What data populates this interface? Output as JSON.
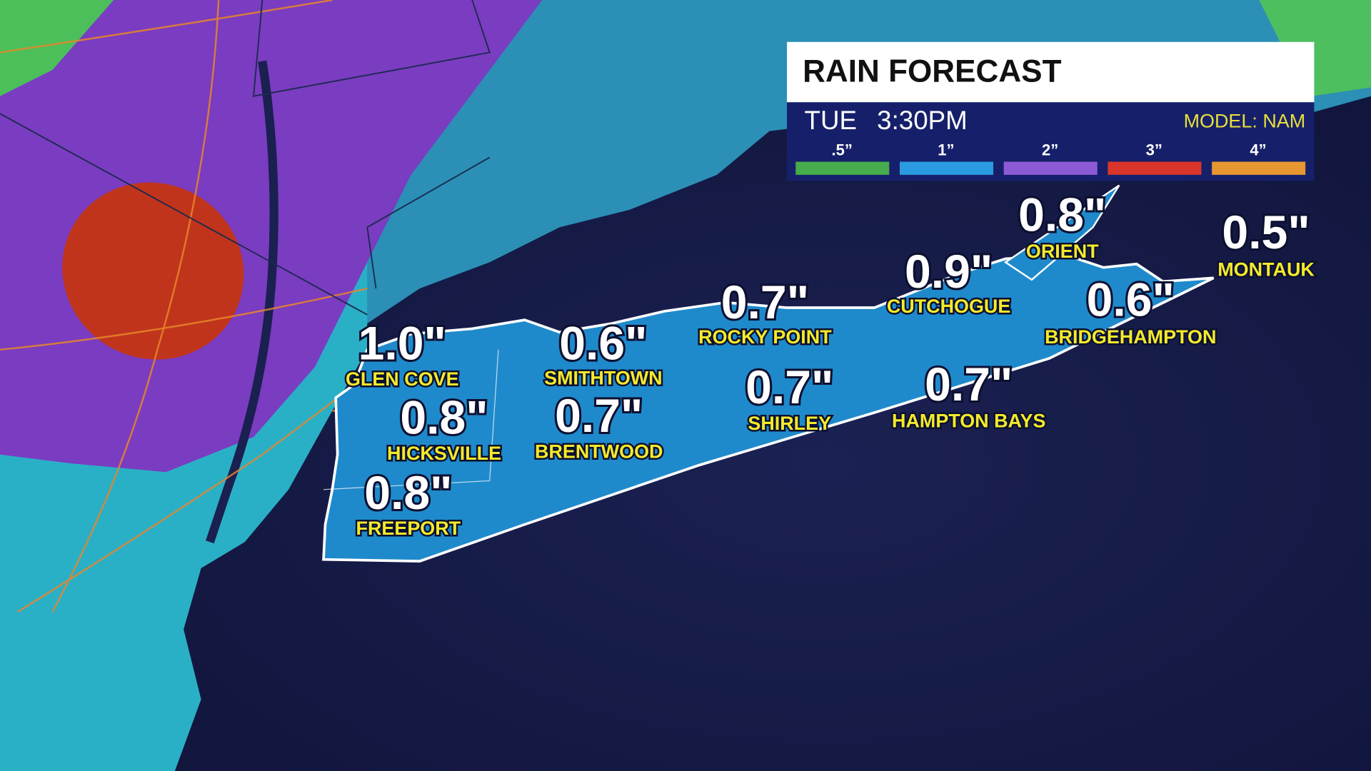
{
  "header": {
    "title": "RAIN FORECAST",
    "day": "TUE",
    "time": "3:30PM",
    "model": "MODEL: NAM"
  },
  "legend": [
    {
      "label": ".5”",
      "color": "#46ab4c"
    },
    {
      "label": "1”",
      "color": "#2a9be0"
    },
    {
      "label": "2”",
      "color": "#8d5ad6"
    },
    {
      "label": "3”",
      "color": "#d9352a"
    },
    {
      "label": "4”",
      "color": "#e8962f"
    }
  ],
  "locations": [
    {
      "value": "1.0\"",
      "name": "GLEN COVE"
    },
    {
      "value": "0.6\"",
      "name": "SMITHTOWN"
    },
    {
      "value": "0.7\"",
      "name": "ROCKY POINT"
    },
    {
      "value": "0.9\"",
      "name": "CUTCHOGUE"
    },
    {
      "value": "0.8\"",
      "name": "ORIENT"
    },
    {
      "value": "0.5\"",
      "name": "MONTAUK"
    },
    {
      "value": "0.6\"",
      "name": "BRIDGEHAMPTON"
    },
    {
      "value": "0.8\"",
      "name": "HICKSVILLE"
    },
    {
      "value": "0.7\"",
      "name": "BRENTWOOD"
    },
    {
      "value": "0.7\"",
      "name": "SHIRLEY"
    },
    {
      "value": "0.7\"",
      "name": "HAMPTON BAYS"
    },
    {
      "value": "0.8\"",
      "name": "FREEPORT"
    }
  ]
}
